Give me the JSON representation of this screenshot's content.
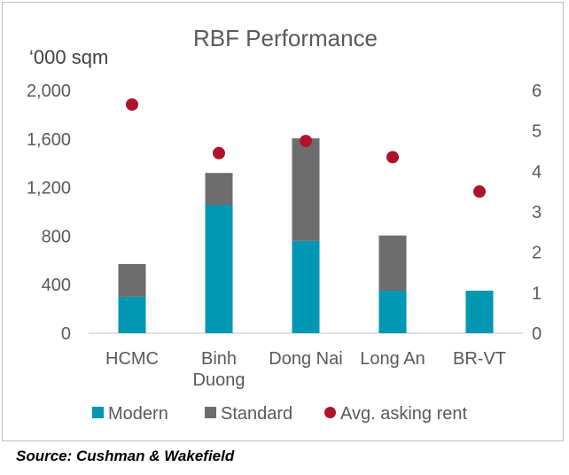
{
  "chart_data": {
    "type": "bar",
    "title": "RBF Performance",
    "ylabel": "‘000 sqm",
    "y2label": "",
    "stacked": true,
    "categories": [
      [
        "HCMC"
      ],
      [
        "Binh",
        "Duong"
      ],
      [
        "Dong Nai"
      ],
      [
        "Long An"
      ],
      [
        "BR-VT"
      ]
    ],
    "ylim": [
      0,
      2000
    ],
    "yticks": [
      "0",
      "400",
      "800",
      "1,200",
      "1,600",
      "2,000"
    ],
    "ytick_values": [
      0,
      400,
      800,
      1200,
      1600,
      2000
    ],
    "y2lim": [
      0,
      6
    ],
    "y2ticks": [
      "0",
      "1",
      "2",
      "3",
      "4",
      "5",
      "6"
    ],
    "y2tick_values": [
      0,
      1,
      2,
      3,
      4,
      5,
      6
    ],
    "series": [
      {
        "name": "Modern",
        "kind": "bar",
        "color": "#0097b2",
        "values": [
          300,
          1055,
          760,
          350,
          350
        ]
      },
      {
        "name": "Standard",
        "kind": "bar",
        "color": "#6d6d6d",
        "values": [
          270,
          265,
          845,
          455,
          0
        ]
      },
      {
        "name": "Avg. asking rent",
        "kind": "scatter",
        "axis": "secondary",
        "color": "#b0122c",
        "values": [
          5.65,
          4.45,
          4.75,
          4.35,
          3.5
        ]
      }
    ],
    "grid": false,
    "legend": "bottom"
  },
  "source": "Source: Cushman & Wakefield"
}
